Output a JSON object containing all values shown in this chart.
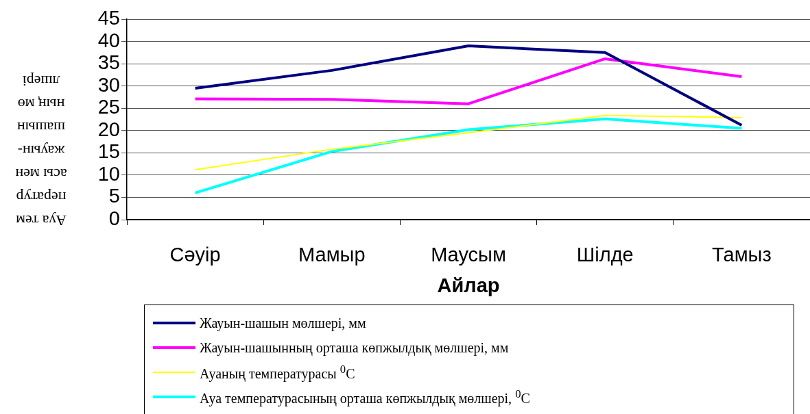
{
  "chart_data": {
    "type": "line",
    "xlabel": "Айлар",
    "ylabel": "Ауа температурасы мен жауын-шашынның мөлшері",
    "categories": [
      "Сәуір",
      "Мамыр",
      "Маусым",
      "Шілде",
      "Тамыз"
    ],
    "series": [
      {
        "name": "Жауын-шашын мөлшері, мм",
        "color": "#000080",
        "values": [
          29.5,
          33.5,
          39,
          37.5,
          21.2
        ]
      },
      {
        "name": "Жауын-шашынның орташа көпжылдық мөлшері, мм",
        "color": "#ff00ff",
        "values": [
          27.1,
          27,
          26,
          36.1,
          32.1
        ]
      },
      {
        "name": "Ауаның температурасы $^{0}$C",
        "color": "#ffff00",
        "values": [
          11.2,
          15.8,
          19.5,
          23.4,
          22.9
        ]
      },
      {
        "name": "Ауа температурасының орташа көпжылдық мөлшері, $^{0}$C",
        "color": "#00ffff",
        "values": [
          6,
          15.3,
          20.2,
          22.6,
          20.5
        ]
      }
    ],
    "ylim": [
      0,
      45
    ],
    "yticks": [
      0,
      5,
      10,
      15,
      20,
      25,
      30,
      35,
      40,
      45
    ],
    "grid": "y",
    "legend": "bottom",
    "marker": "none",
    "line_style": "solid"
  }
}
